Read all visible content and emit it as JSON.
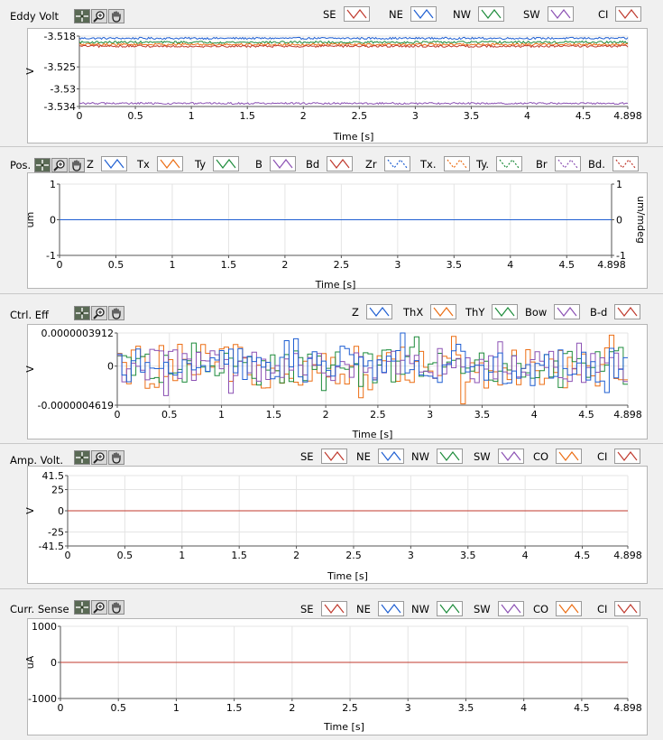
{
  "tools": {
    "crosshair_icon": "crosshair-icon",
    "zoom_icon": "magnifier-zoom-icon",
    "pan_icon": "hand-pan-icon"
  },
  "colors": {
    "blue": "#1f5fd2",
    "orange": "#ec6e14",
    "green": "#1e8c3c",
    "purple": "#8c52b4",
    "red": "#c03a2e",
    "grid": "#e4e4e4",
    "panel_bg": "#f0f0f0"
  },
  "chart_data": [
    {
      "id": "eddy",
      "type": "line",
      "title": "Eddy Volt",
      "xlabel": "Time [s]",
      "ylabel": "V",
      "xlim": [
        0,
        4.898
      ],
      "ylim": [
        -3.534,
        -3.518
      ],
      "x_ticks": [
        0,
        0.5,
        1,
        1.5,
        2,
        2.5,
        3,
        3.5,
        4,
        4.5,
        4.898
      ],
      "x_tick_labels": [
        "0",
        "0.5",
        "1",
        "1.5",
        "2",
        "2.5",
        "3",
        "3.5",
        "4",
        "4.5",
        "4.898"
      ],
      "y_ticks": [
        -3.518,
        -3.525,
        -3.53,
        -3.534
      ],
      "y_tick_labels": [
        "-3.518",
        "-3.525",
        "-3.53",
        "-3.534"
      ],
      "grid": true,
      "legend": [
        {
          "label": "SE",
          "color": "#c03a2e"
        },
        {
          "label": "NE",
          "color": "#1f5fd2"
        },
        {
          "label": "NW",
          "color": "#1e8c3c"
        },
        {
          "label": "SW",
          "color": "#8c52b4"
        },
        {
          "label": "CI",
          "color": "#c03a2e"
        }
      ],
      "series": [
        {
          "color": "#1f5fd2",
          "level": -3.5185,
          "noise": 0.00022
        },
        {
          "color": "#1e8c3c",
          "level": -3.5194,
          "noise": 0.00025
        },
        {
          "color": "#ec6e14",
          "level": -3.5199,
          "noise": 0.00025
        },
        {
          "color": "#c03a2e",
          "level": -3.5203,
          "noise": 0.00025
        },
        {
          "color": "#8c52b4",
          "level": -3.5333,
          "noise": 0.00022
        }
      ]
    },
    {
      "id": "pos",
      "type": "line",
      "title": "Pos.",
      "xlabel": "Time [s]",
      "ylabel": "um",
      "ylabel_right": "um/mdeg",
      "xlim": [
        0,
        4.898
      ],
      "ylim": [
        -1,
        1
      ],
      "x_ticks": [
        0,
        0.5,
        1,
        1.5,
        2,
        2.5,
        3,
        3.5,
        4,
        4.5,
        4.898
      ],
      "x_tick_labels": [
        "0",
        "0.5",
        "1",
        "1.5",
        "2",
        "2.5",
        "3",
        "3.5",
        "4",
        "4.5",
        "4.898"
      ],
      "y_ticks": [
        1,
        0,
        -1
      ],
      "y_tick_labels": [
        "1",
        "0",
        "-1"
      ],
      "y_ticks_right": [
        1,
        0,
        -1
      ],
      "y_tick_labels_right": [
        "1",
        "0",
        "-1"
      ],
      "grid": true,
      "legend": [
        {
          "label": "Z",
          "color": "#1f5fd2",
          "dashed": false
        },
        {
          "label": "Tx",
          "color": "#ec6e14",
          "dashed": false
        },
        {
          "label": "Ty",
          "color": "#1e8c3c",
          "dashed": false
        },
        {
          "label": "B",
          "color": "#8c52b4",
          "dashed": false
        },
        {
          "label": "Bd",
          "color": "#c03a2e",
          "dashed": false
        },
        {
          "label": "Zr",
          "color": "#1f5fd2",
          "dashed": true
        },
        {
          "label": "Tx.",
          "color": "#ec6e14",
          "dashed": true
        },
        {
          "label": "Ty.",
          "color": "#1e8c3c",
          "dashed": true
        },
        {
          "label": "Br",
          "color": "#8c52b4",
          "dashed": true
        },
        {
          "label": "Bd.",
          "color": "#c03a2e",
          "dashed": true
        }
      ],
      "series": [
        {
          "color": "#1f5fd2",
          "level": 0,
          "noise": 0
        }
      ]
    },
    {
      "id": "ctrl",
      "type": "line",
      "title": "Ctrl. Eff",
      "xlabel": "Time [s]",
      "ylabel": "V",
      "xlim": [
        0,
        4.898
      ],
      "ylim": [
        -4.619e-07,
        3.912e-07
      ],
      "x_ticks": [
        0,
        0.5,
        1,
        1.5,
        2,
        2.5,
        3,
        3.5,
        4,
        4.5,
        4.898
      ],
      "x_tick_labels": [
        "0",
        "0.5",
        "1",
        "1.5",
        "2",
        "2.5",
        "3",
        "3.5",
        "4",
        "4.5",
        "4.898"
      ],
      "y_ticks": [
        3.912e-07,
        0,
        -4.619e-07
      ],
      "y_tick_labels": [
        "0.0000003912",
        "0",
        "-0.0000004619"
      ],
      "grid": true,
      "legend": [
        {
          "label": "Z",
          "color": "#1f5fd2"
        },
        {
          "label": "ThX",
          "color": "#ec6e14"
        },
        {
          "label": "ThY",
          "color": "#1e8c3c"
        },
        {
          "label": "Bow",
          "color": "#8c52b4"
        },
        {
          "label": "B-d",
          "color": "#c03a2e"
        }
      ],
      "series": [
        {
          "color": "#ec6e14",
          "level": 0,
          "noise": 2.6e-07,
          "step": true
        },
        {
          "color": "#1e8c3c",
          "level": 0,
          "noise": 2e-07,
          "step": true
        },
        {
          "color": "#8c52b4",
          "level": 0,
          "noise": 2e-07,
          "step": true
        },
        {
          "color": "#1f5fd2",
          "level": 0,
          "noise": 2.2e-07,
          "step": true
        }
      ]
    },
    {
      "id": "amp",
      "type": "line",
      "title": "Amp. Volt.",
      "xlabel": "Time [s]",
      "ylabel": "V",
      "xlim": [
        0,
        4.898
      ],
      "ylim": [
        -41.5,
        41.5
      ],
      "x_ticks": [
        0,
        0.5,
        1,
        1.5,
        2,
        2.5,
        3,
        3.5,
        4,
        4.5,
        4.898
      ],
      "x_tick_labels": [
        "0",
        "0.5",
        "1",
        "1.5",
        "2",
        "2.5",
        "3",
        "3.5",
        "4",
        "4.5",
        "4.898"
      ],
      "y_ticks": [
        41.5,
        25,
        0,
        -25,
        -41.5
      ],
      "y_tick_labels": [
        "41.5",
        "25",
        "0",
        "-25",
        "-41.5"
      ],
      "grid": true,
      "legend": [
        {
          "label": "SE",
          "color": "#c03a2e"
        },
        {
          "label": "NE",
          "color": "#1f5fd2"
        },
        {
          "label": "NW",
          "color": "#1e8c3c"
        },
        {
          "label": "SW",
          "color": "#8c52b4"
        },
        {
          "label": "CO",
          "color": "#ec6e14"
        },
        {
          "label": "CI",
          "color": "#c03a2e"
        }
      ],
      "series": [
        {
          "color": "#c03a2e",
          "level": 0,
          "noise": 0
        }
      ]
    },
    {
      "id": "curr",
      "type": "line",
      "title": "Curr. Sense",
      "xlabel": "Time [s]",
      "ylabel": "uA",
      "xlim": [
        0,
        4.898
      ],
      "ylim": [
        -1000,
        1000
      ],
      "x_ticks": [
        0,
        0.5,
        1,
        1.5,
        2,
        2.5,
        3,
        3.5,
        4,
        4.5,
        4.898
      ],
      "x_tick_labels": [
        "0",
        "0.5",
        "1",
        "1.5",
        "2",
        "2.5",
        "3",
        "3.5",
        "4",
        "4.5",
        "4.898"
      ],
      "y_ticks": [
        1000,
        0,
        -1000
      ],
      "y_tick_labels": [
        "1000",
        "0",
        "-1000"
      ],
      "grid": true,
      "legend": [
        {
          "label": "SE",
          "color": "#c03a2e"
        },
        {
          "label": "NE",
          "color": "#1f5fd2"
        },
        {
          "label": "NW",
          "color": "#1e8c3c"
        },
        {
          "label": "SW",
          "color": "#8c52b4"
        },
        {
          "label": "CO",
          "color": "#ec6e14"
        },
        {
          "label": "CI",
          "color": "#c03a2e"
        }
      ],
      "series": [
        {
          "color": "#c03a2e",
          "level": 0,
          "noise": 0
        }
      ]
    }
  ]
}
